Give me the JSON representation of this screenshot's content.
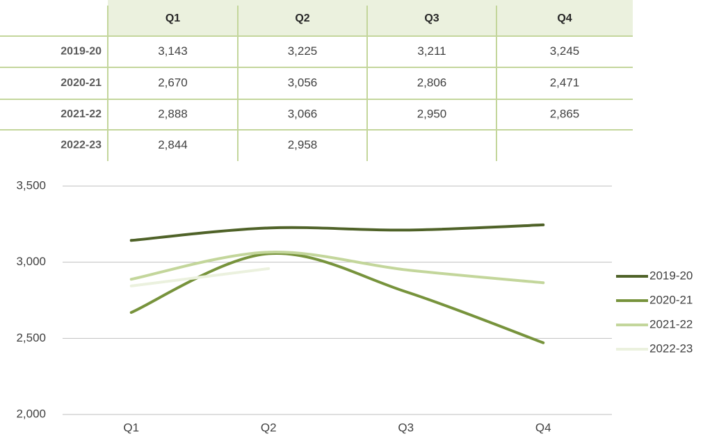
{
  "chart_data": {
    "type": "line",
    "categories": [
      "Q1",
      "Q2",
      "Q3",
      "Q4"
    ],
    "series": [
      {
        "name": "2019-20",
        "color": "#4f6228",
        "values": [
          3143,
          3225,
          3211,
          3245
        ],
        "value_labels": [
          "3,143",
          "3,225",
          "3,211",
          "3,245"
        ]
      },
      {
        "name": "2020-21",
        "color": "#77933c",
        "values": [
          2670,
          3056,
          2806,
          2471
        ],
        "value_labels": [
          "2,670",
          "3,056",
          "2,806",
          "2,471"
        ]
      },
      {
        "name": "2021-22",
        "color": "#c3d69b",
        "values": [
          2888,
          3066,
          2950,
          2865
        ],
        "value_labels": [
          "2,888",
          "3,066",
          "2,950",
          "2,865"
        ]
      },
      {
        "name": "2022-23",
        "color": "#ebf1de",
        "values": [
          2844,
          2958,
          null,
          null
        ],
        "value_labels": [
          "2,844",
          "2,958",
          null,
          null
        ]
      }
    ],
    "ylim": [
      2000,
      3500
    ],
    "yticks": [
      {
        "value": 2000,
        "label": "2,000"
      },
      {
        "value": 2500,
        "label": "2,500"
      },
      {
        "value": 3000,
        "label": "3,000"
      },
      {
        "value": 3500,
        "label": "3,500"
      }
    ],
    "grid": true,
    "legend": "right"
  }
}
